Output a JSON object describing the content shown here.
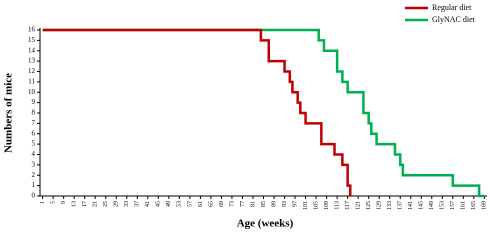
{
  "chart_data": {
    "type": "line",
    "xlabel": "Age (weeks)",
    "ylabel": "Numbers of mice",
    "xlim": [
      0,
      170
    ],
    "ylim": [
      0,
      16
    ],
    "xticks": [
      1,
      5,
      9,
      13,
      17,
      21,
      25,
      29,
      33,
      37,
      41,
      45,
      49,
      53,
      57,
      61,
      65,
      69,
      73,
      77,
      81,
      85,
      89,
      93,
      97,
      101,
      105,
      109,
      113,
      117,
      121,
      125,
      129,
      133,
      137,
      141,
      145,
      149,
      153,
      157,
      161,
      165,
      169
    ],
    "yticks": [
      0,
      1,
      2,
      3,
      4,
      5,
      6,
      7,
      8,
      9,
      10,
      11,
      12,
      13,
      14,
      15,
      16
    ],
    "legend": "top-right",
    "series": [
      {
        "name": "GlyNAC diet",
        "color": "#00b050",
        "x": [
          1,
          106,
          106,
          108,
          108,
          113,
          113,
          115,
          115,
          117,
          117,
          123,
          123,
          125,
          125,
          126,
          126,
          128,
          128,
          135,
          135,
          137,
          137,
          138,
          138,
          157,
          157,
          167,
          167,
          169
        ],
        "values": [
          16,
          16,
          15,
          15,
          14,
          14,
          12,
          12,
          11,
          11,
          10,
          10,
          8,
          8,
          7,
          7,
          6,
          6,
          5,
          5,
          4,
          4,
          3,
          3,
          2,
          2,
          1,
          1,
          0,
          0
        ]
      },
      {
        "name": "Regular diet",
        "color": "#c00000",
        "x": [
          1,
          84,
          84,
          87,
          87,
          93,
          93,
          95,
          95,
          96,
          96,
          98,
          98,
          99,
          99,
          101,
          101,
          107,
          107,
          112,
          112,
          115,
          115,
          117,
          117,
          118,
          118
        ],
        "values": [
          16,
          16,
          15,
          15,
          13,
          13,
          12,
          12,
          11,
          11,
          10,
          10,
          9,
          9,
          8,
          8,
          7,
          7,
          5,
          5,
          4,
          4,
          3,
          3,
          1,
          1,
          0
        ]
      }
    ]
  }
}
